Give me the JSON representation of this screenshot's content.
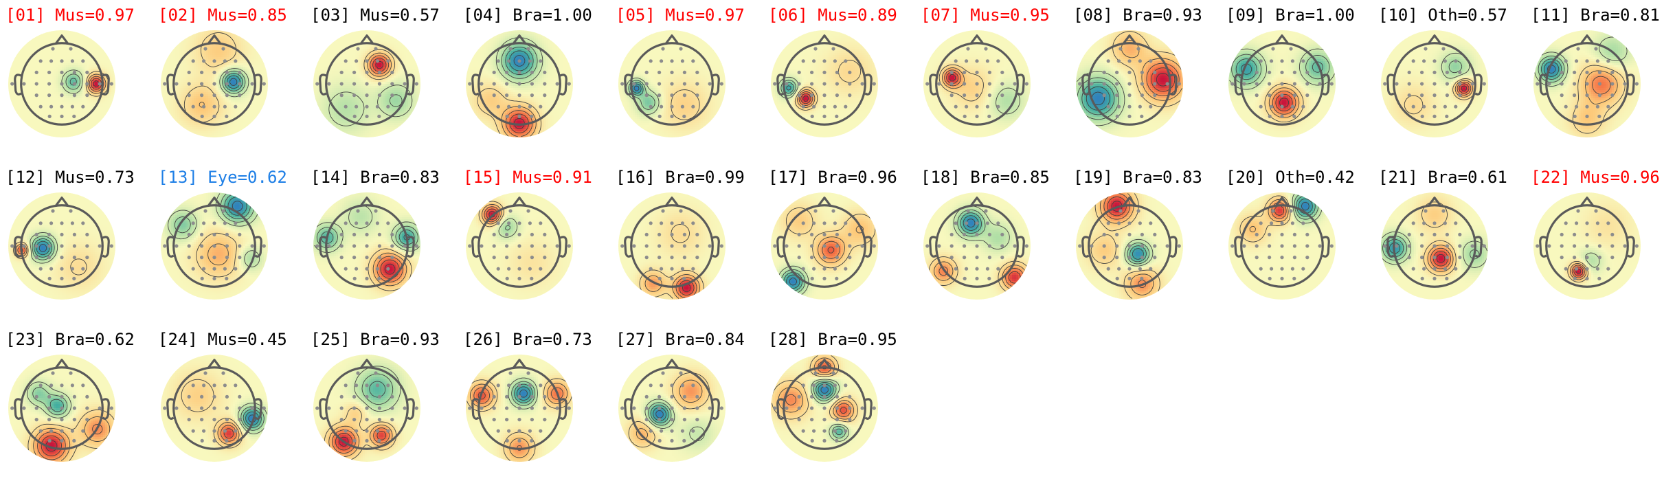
{
  "colors": {
    "muscle": "#ff0000",
    "eye": "#1e7fe6",
    "default": "#000000",
    "sensor": "#8c8c8c",
    "head_outline": "#5a5a5a",
    "contour": "#404040"
  },
  "components": [
    {
      "title": "[01] Mus=0.97",
      "color": "muscle",
      "blobs": [
        [
          0.82,
          0.0,
          1.0,
          0.16
        ],
        [
          0.28,
          -0.05,
          -0.6,
          0.18
        ]
      ]
    },
    {
      "title": "[02] Mus=0.85",
      "color": "muscle",
      "blobs": [
        [
          0.45,
          -0.05,
          -1.0,
          0.2
        ],
        [
          -0.3,
          0.5,
          0.35,
          0.35
        ],
        [
          0.1,
          -0.8,
          0.3,
          0.4
        ]
      ]
    },
    {
      "title": "[03] Mus=0.57",
      "color": "default",
      "blobs": [
        [
          0.3,
          -0.45,
          1.0,
          0.2
        ],
        [
          -0.5,
          0.6,
          -0.3,
          0.4
        ],
        [
          0.7,
          0.4,
          -0.4,
          0.3
        ]
      ]
    },
    {
      "title": "[04] Bra=1.00",
      "color": "default",
      "blobs": [
        [
          0.0,
          -0.55,
          -1.0,
          0.3
        ],
        [
          0.0,
          0.95,
          1.0,
          0.28
        ],
        [
          -0.7,
          0.4,
          0.3,
          0.3
        ]
      ]
    },
    {
      "title": "[05] Mus=0.97",
      "color": "muscle",
      "blobs": [
        [
          -0.85,
          0.1,
          -0.9,
          0.13
        ],
        [
          -0.55,
          0.45,
          -0.5,
          0.2
        ],
        [
          0.3,
          0.5,
          0.25,
          0.4
        ]
      ]
    },
    {
      "title": "[06] Mus=0.89",
      "color": "muscle",
      "blobs": [
        [
          -0.45,
          0.35,
          0.9,
          0.15
        ],
        [
          -0.85,
          0.1,
          -0.7,
          0.15
        ],
        [
          0.6,
          -0.3,
          0.2,
          0.4
        ]
      ]
    },
    {
      "title": "[07] Mus=0.95",
      "color": "muscle",
      "blobs": [
        [
          -0.6,
          -0.15,
          1.0,
          0.16
        ],
        [
          -0.1,
          0.1,
          0.3,
          0.35
        ],
        [
          0.7,
          0.4,
          -0.35,
          0.3
        ]
      ]
    },
    {
      "title": "[08] Bra=0.93",
      "color": "default",
      "blobs": [
        [
          -0.75,
          0.35,
          -0.9,
          0.35
        ],
        [
          0.8,
          -0.1,
          0.9,
          0.35
        ],
        [
          0.0,
          -0.85,
          0.4,
          0.3
        ]
      ]
    },
    {
      "title": "[09] Bra=1.00",
      "color": "default",
      "blobs": [
        [
          0.05,
          0.45,
          1.0,
          0.25
        ],
        [
          -0.85,
          -0.35,
          -0.8,
          0.28
        ],
        [
          0.85,
          -0.4,
          -0.6,
          0.28
        ]
      ]
    },
    {
      "title": "[10] Oth=0.57",
      "color": "default",
      "blobs": [
        [
          0.7,
          0.1,
          0.95,
          0.15
        ],
        [
          0.5,
          -0.4,
          -0.4,
          0.25
        ],
        [
          -0.5,
          0.5,
          0.2,
          0.35
        ]
      ]
    },
    {
      "title": "[11] Bra=0.81",
      "color": "default",
      "blobs": [
        [
          0.35,
          0.0,
          0.6,
          0.35
        ],
        [
          -0.85,
          -0.35,
          -0.9,
          0.22
        ],
        [
          0.6,
          -0.75,
          -0.35,
          0.3
        ],
        [
          0.0,
          0.85,
          0.3,
          0.3
        ]
      ]
    },
    {
      "title": "[12] Mus=0.73",
      "color": "default",
      "blobs": [
        [
          -0.45,
          0.05,
          -1.0,
          0.2
        ],
        [
          -0.95,
          0.1,
          0.8,
          0.12
        ],
        [
          0.4,
          0.5,
          0.2,
          0.4
        ]
      ]
    },
    {
      "title": "[13] Eye=0.62",
      "color": "eye",
      "blobs": [
        [
          0.55,
          -0.95,
          -0.9,
          0.28
        ],
        [
          -0.75,
          -0.5,
          -0.45,
          0.25
        ],
        [
          0.1,
          0.2,
          0.4,
          0.4
        ],
        [
          0.85,
          0.3,
          -0.35,
          0.2
        ]
      ]
    },
    {
      "title": "[14] Bra=0.83",
      "color": "default",
      "blobs": [
        [
          0.55,
          0.55,
          0.9,
          0.28
        ],
        [
          -0.95,
          -0.2,
          -0.6,
          0.22
        ],
        [
          0.95,
          -0.2,
          -0.7,
          0.22
        ],
        [
          -0.15,
          -0.7,
          -0.25,
          0.3
        ]
      ]
    },
    {
      "title": "[15] Mus=0.91",
      "color": "muscle",
      "blobs": [
        [
          -0.65,
          -0.75,
          1.0,
          0.17
        ],
        [
          -0.3,
          -0.45,
          -0.4,
          0.2
        ],
        [
          0.3,
          0.4,
          0.15,
          0.4
        ]
      ]
    },
    {
      "title": "[16] Bra=0.99",
      "color": "default",
      "blobs": [
        [
          0.35,
          1.0,
          0.95,
          0.22
        ],
        [
          -0.45,
          0.9,
          0.5,
          0.22
        ],
        [
          0.2,
          -0.3,
          0.2,
          0.4
        ]
      ]
    },
    {
      "title": "[17] Bra=0.96",
      "color": "default",
      "blobs": [
        [
          0.15,
          0.1,
          0.6,
          0.25
        ],
        [
          -0.75,
          0.85,
          -0.8,
          0.2
        ],
        [
          0.85,
          -0.4,
          0.3,
          0.3
        ],
        [
          -0.6,
          -0.6,
          0.25,
          0.3
        ]
      ]
    },
    {
      "title": "[18] Bra=0.85",
      "color": "default",
      "blobs": [
        [
          -0.15,
          -0.55,
          -0.9,
          0.22
        ],
        [
          0.9,
          0.75,
          0.8,
          0.22
        ],
        [
          -0.8,
          0.6,
          0.55,
          0.22
        ],
        [
          0.5,
          -0.2,
          -0.3,
          0.25
        ]
      ]
    },
    {
      "title": "[19] Bra=0.83",
      "color": "default",
      "blobs": [
        [
          0.2,
          0.2,
          -0.9,
          0.2
        ],
        [
          -0.3,
          -0.95,
          0.95,
          0.28
        ],
        [
          0.3,
          0.9,
          0.55,
          0.28
        ],
        [
          -0.6,
          0.1,
          0.3,
          0.3
        ]
      ]
    },
    {
      "title": "[20] Oth=0.42",
      "color": "default",
      "blobs": [
        [
          0.55,
          -0.95,
          -0.8,
          0.22
        ],
        [
          -0.05,
          -0.85,
          0.7,
          0.2
        ],
        [
          -0.7,
          -0.4,
          0.3,
          0.25
        ]
      ]
    },
    {
      "title": "[21] Bra=0.61",
      "color": "default",
      "blobs": [
        [
          0.15,
          0.3,
          1.0,
          0.22
        ],
        [
          -0.95,
          0.05,
          -0.85,
          0.22
        ],
        [
          0.95,
          0.2,
          -0.4,
          0.25
        ],
        [
          0.0,
          -0.75,
          0.3,
          0.3
        ]
      ]
    },
    {
      "title": "[22] Mus=0.96",
      "color": "muscle",
      "blobs": [
        [
          -0.2,
          0.6,
          1.0,
          0.14
        ],
        [
          0.1,
          0.35,
          -0.3,
          0.2
        ],
        [
          0.5,
          -0.5,
          0.15,
          0.4
        ]
      ]
    },
    {
      "title": "[23] Bra=0.62",
      "color": "default",
      "blobs": [
        [
          -0.1,
          -0.05,
          -0.6,
          0.2
        ],
        [
          -0.55,
          -0.35,
          -0.4,
          0.2
        ],
        [
          -0.25,
          0.9,
          0.85,
          0.3
        ],
        [
          0.85,
          0.5,
          0.5,
          0.3
        ]
      ]
    },
    {
      "title": "[24] Mus=0.45",
      "color": "default",
      "blobs": [
        [
          0.35,
          0.6,
          0.6,
          0.2
        ],
        [
          0.9,
          0.25,
          -0.7,
          0.2
        ],
        [
          -0.4,
          -0.3,
          0.2,
          0.4
        ]
      ]
    },
    {
      "title": "[25] Bra=0.93",
      "color": "default",
      "blobs": [
        [
          0.25,
          -0.45,
          -0.6,
          0.35
        ],
        [
          -0.55,
          0.8,
          0.95,
          0.25
        ],
        [
          0.35,
          0.65,
          0.8,
          0.2
        ],
        [
          -0.25,
          0.1,
          0.3,
          0.2
        ]
      ]
    },
    {
      "title": "[26] Bra=0.73",
      "color": "default",
      "blobs": [
        [
          0.1,
          -0.35,
          -0.9,
          0.2
        ],
        [
          -0.9,
          -0.3,
          0.7,
          0.22
        ],
        [
          0.9,
          -0.35,
          0.6,
          0.22
        ],
        [
          0.0,
          0.95,
          0.5,
          0.25
        ]
      ]
    },
    {
      "title": "[27] Bra=0.84",
      "color": "default",
      "blobs": [
        [
          -0.3,
          0.15,
          -0.95,
          0.2
        ],
        [
          0.45,
          -0.4,
          0.5,
          0.3
        ],
        [
          -0.7,
          0.6,
          0.4,
          0.25
        ],
        [
          0.6,
          0.6,
          -0.2,
          0.3
        ]
      ]
    },
    {
      "title": "[28] Bra=0.95",
      "color": "default",
      "blobs": [
        [
          0.0,
          -0.45,
          -0.8,
          0.2
        ],
        [
          0.45,
          0.05,
          0.6,
          0.2
        ],
        [
          0.35,
          0.55,
          -0.5,
          0.15
        ],
        [
          -0.8,
          -0.2,
          0.45,
          0.3
        ],
        [
          0.0,
          -0.95,
          0.6,
          0.2
        ]
      ]
    }
  ]
}
